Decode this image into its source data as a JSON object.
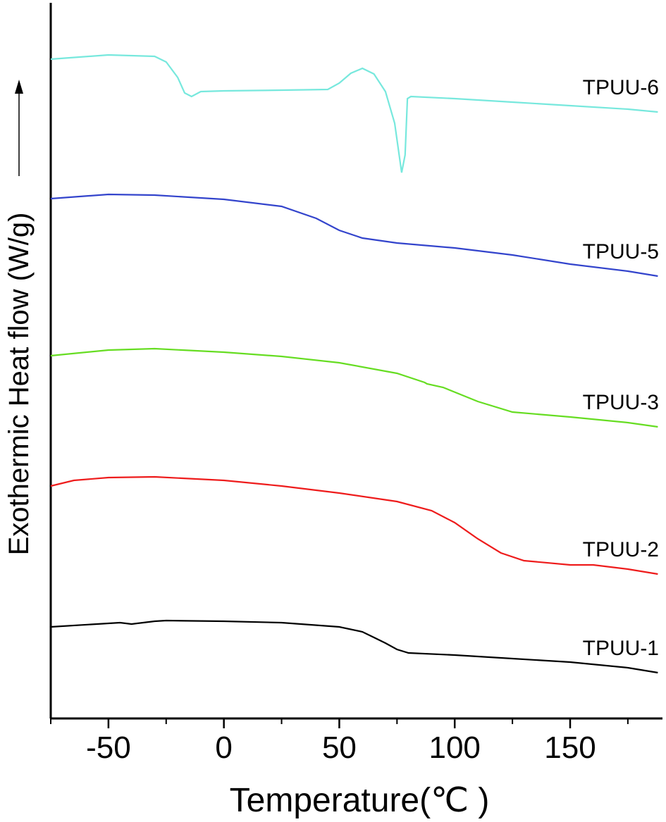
{
  "chart_data": {
    "type": "line",
    "xlabel": "Temperature(℃ )",
    "ylabel": "Exothermic Heat flow (W/g)",
    "xlim": [
      -75,
      190
    ],
    "xticks": [
      -50,
      0,
      50,
      100,
      150
    ],
    "xminor_ticks": [
      -75,
      -25,
      25,
      75,
      125,
      175
    ],
    "ylim": [
      0,
      102
    ],
    "series": [
      {
        "name": "TPUU-1",
        "color": "#000000",
        "x": [
          -75,
          -50,
          -45,
          -40,
          -30,
          -25,
          0,
          25,
          50,
          60,
          65,
          70,
          75,
          80,
          100,
          125,
          150,
          175,
          188
        ],
        "values": [
          13.0,
          13.5,
          13.6,
          13.4,
          13.8,
          13.9,
          13.8,
          13.6,
          13.0,
          12.3,
          11.5,
          10.7,
          9.8,
          9.3,
          9.0,
          8.5,
          8.0,
          7.2,
          6.5
        ]
      },
      {
        "name": "TPUU-2",
        "color": "#ee1c1c",
        "x": [
          -75,
          -65,
          -50,
          -30,
          0,
          25,
          50,
          75,
          90,
          100,
          110,
          120,
          130,
          150,
          160,
          175,
          188
        ],
        "values": [
          33.0,
          33.8,
          34.2,
          34.3,
          33.8,
          33.0,
          32.0,
          30.8,
          29.5,
          27.8,
          25.5,
          23.5,
          22.4,
          21.8,
          21.8,
          21.2,
          20.5
        ]
      },
      {
        "name": "TPUU-3",
        "color": "#66dd22",
        "x": [
          -75,
          -50,
          -30,
          0,
          25,
          50,
          75,
          87,
          88,
          95,
          110,
          125,
          150,
          175,
          188
        ],
        "values": [
          51.5,
          52.3,
          52.5,
          52.0,
          51.4,
          50.5,
          49.0,
          47.7,
          47.5,
          47.0,
          45.0,
          43.5,
          42.8,
          42.0,
          41.4
        ]
      },
      {
        "name": "TPUU-5",
        "color": "#3344cc",
        "x": [
          -75,
          -50,
          -30,
          0,
          25,
          40,
          50,
          60,
          75,
          100,
          125,
          150,
          175,
          188
        ],
        "values": [
          73.8,
          74.4,
          74.3,
          73.7,
          72.7,
          71.0,
          69.3,
          68.2,
          67.5,
          66.8,
          65.8,
          64.5,
          63.5,
          62.8
        ]
      },
      {
        "name": "TPUU-6",
        "color": "#77e8dd",
        "x": [
          -75,
          -50,
          -30,
          -25,
          -20,
          -17,
          -14,
          -10,
          0,
          25,
          45,
          50,
          55,
          60,
          65,
          70,
          74,
          77,
          78.5,
          79.5,
          81,
          100,
          125,
          150,
          175,
          188
        ],
        "values": [
          93.6,
          94.2,
          94.0,
          93.2,
          91.0,
          88.8,
          88.3,
          89.0,
          89.1,
          89.2,
          89.3,
          90.2,
          91.6,
          92.3,
          91.5,
          89.0,
          84.5,
          77.5,
          80.0,
          88.0,
          88.3,
          88.0,
          87.5,
          87.0,
          86.5,
          86.1
        ]
      }
    ]
  }
}
